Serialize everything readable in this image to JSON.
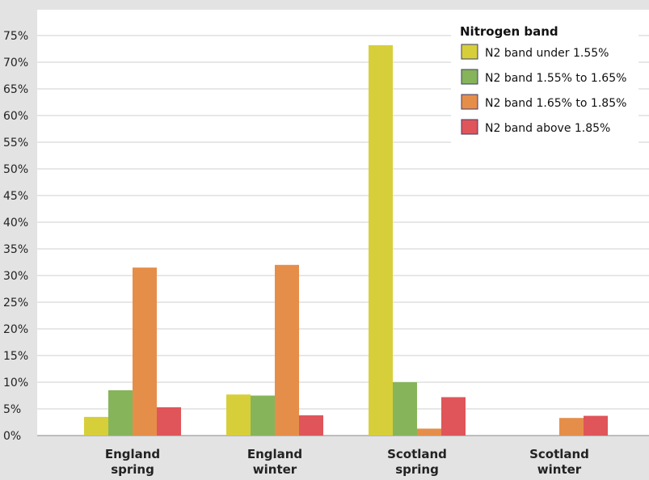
{
  "chart_data": {
    "type": "bar",
    "categories": [
      [
        "England",
        "spring"
      ],
      [
        "England",
        "winter"
      ],
      [
        "Scotland",
        "spring"
      ],
      [
        "Scotland",
        "winter"
      ]
    ],
    "series": [
      {
        "name": "N2 band under 1.55%",
        "color": "#d7cf3a",
        "values": [
          3.5,
          7.7,
          73.2,
          0
        ]
      },
      {
        "name": "N2 band 1.55% to 1.65%",
        "color": "#86b45a",
        "values": [
          8.5,
          7.5,
          10.0,
          0
        ]
      },
      {
        "name": "N2 band 1.65% to 1.85%",
        "color": "#e58e4a",
        "values": [
          31.5,
          32.0,
          1.3,
          3.3
        ]
      },
      {
        "name": "N2 band above 1.85%",
        "color": "#df555a",
        "values": [
          5.3,
          3.8,
          7.2,
          3.7
        ]
      }
    ],
    "ylim": [
      0,
      75
    ],
    "yticks": [
      "0%",
      "5%",
      "10%",
      "15%",
      "20%",
      "25%",
      "30%",
      "35%",
      "40%",
      "45%",
      "50%",
      "55%",
      "60%",
      "65%",
      "70%",
      "75%"
    ],
    "ytick_values": [
      0,
      5,
      10,
      15,
      20,
      25,
      30,
      35,
      40,
      45,
      50,
      55,
      60,
      65,
      70,
      75
    ],
    "legend_title": "Nitrogen band",
    "legend_position": "top-right",
    "grid": true
  }
}
